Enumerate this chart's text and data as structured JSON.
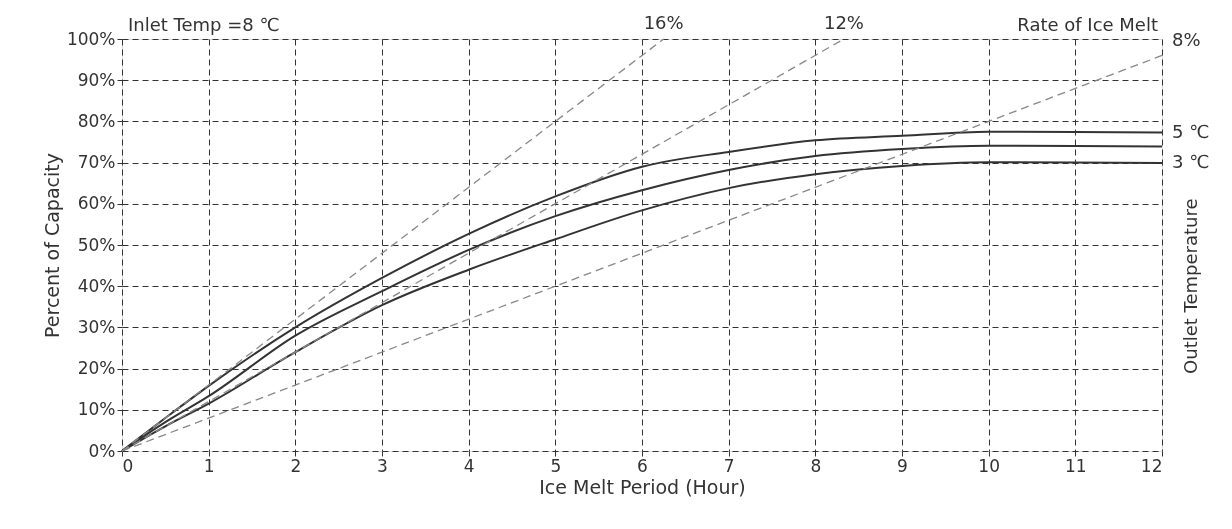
{
  "chart_data": {
    "type": "line",
    "xlabel": "Ice Melt Period (Hour)",
    "ylabel": "Percent of Capacity",
    "y2label": "Outlet Temperature",
    "annotations": [
      "Inlet Temp =8 ℃",
      "Rate of Ice Melt"
    ],
    "x": [
      0,
      0.5,
      1,
      2,
      3,
      4,
      5,
      6,
      7,
      8,
      9,
      10,
      11,
      12
    ],
    "series": [
      {
        "name": "5 ℃",
        "color": "#333333",
        "line_style": "solid",
        "values": [
          0,
          8,
          15.8,
          30,
          42,
          52.7,
          61.8,
          69,
          72.6,
          75.4,
          76.5,
          77.5,
          77.4,
          77.3
        ]
      },
      {
        "color": "#333333",
        "line_style": "solid",
        "values": [
          0,
          7,
          13.3,
          28,
          38.8,
          48.8,
          57,
          63.3,
          68.2,
          71.6,
          73.3,
          74.1,
          74,
          73.9
        ]
      },
      {
        "name": "3 ℃",
        "color": "#333333",
        "line_style": "solid",
        "values": [
          0,
          6,
          11.5,
          24,
          35.4,
          44,
          51.4,
          58.4,
          63.8,
          67.2,
          69.2,
          70.1,
          70,
          69.9
        ]
      },
      {
        "name": "16%",
        "color": "#888888",
        "line_style": "dashed",
        "x": [
          0,
          6.25
        ],
        "values": [
          0,
          100
        ]
      },
      {
        "name": "12%",
        "color": "#888888",
        "line_style": "dashed",
        "x": [
          0,
          8.33
        ],
        "values": [
          0,
          100
        ]
      },
      {
        "name": "8%",
        "color": "#888888",
        "line_style": "dashed",
        "x": [
          0,
          12
        ],
        "values": [
          0,
          96
        ]
      }
    ],
    "xlim": [
      0,
      12
    ],
    "xticks": [
      0,
      1,
      2,
      3,
      4,
      5,
      6,
      7,
      8,
      9,
      10,
      11,
      12
    ],
    "ylim": [
      0,
      100
    ],
    "yticks": [
      {
        "value": 0,
        "label": "0%"
      },
      {
        "value": 10,
        "label": "10%"
      },
      {
        "value": 20,
        "label": "20%"
      },
      {
        "value": 30,
        "label": "30%"
      },
      {
        "value": 40,
        "label": "40%"
      },
      {
        "value": 50,
        "label": "50%"
      },
      {
        "value": 60,
        "label": "60%"
      },
      {
        "value": 70,
        "label": "70%"
      },
      {
        "value": 80,
        "label": "80%"
      },
      {
        "value": 90,
        "label": "90%"
      },
      {
        "value": 100,
        "label": "100%"
      }
    ],
    "grid": true
  }
}
